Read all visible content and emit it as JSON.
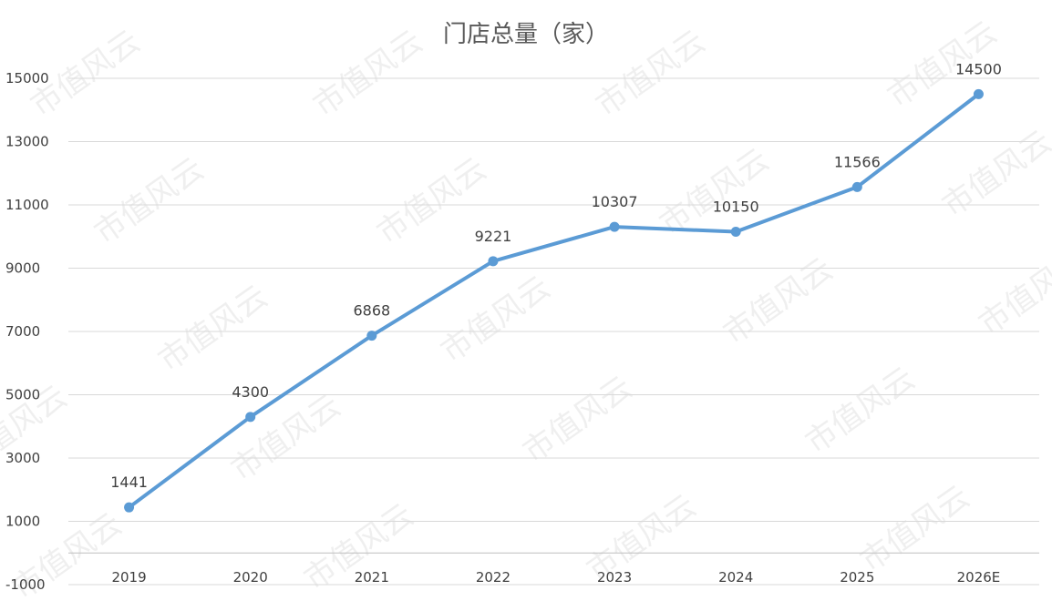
{
  "chart_data": {
    "type": "line",
    "title": "门店总量（家）",
    "xlabel": "",
    "ylabel": "",
    "categories": [
      "2019",
      "2020",
      "2021",
      "2022",
      "2023",
      "2024",
      "2025",
      "2026E"
    ],
    "series": [
      {
        "values": [
          1441,
          4300,
          6868,
          9221,
          10307,
          10150,
          11566,
          14500
        ]
      }
    ],
    "y_ticks": [
      "15000",
      "13000",
      "11000",
      "9000",
      "7000",
      "5000",
      "3000",
      "1000",
      "-1000"
    ],
    "ylim": [
      -1000,
      15000
    ],
    "grid": true,
    "data_labels": true,
    "legend": "none",
    "line_color": "#5B9BD5",
    "watermark": "市值风云"
  }
}
